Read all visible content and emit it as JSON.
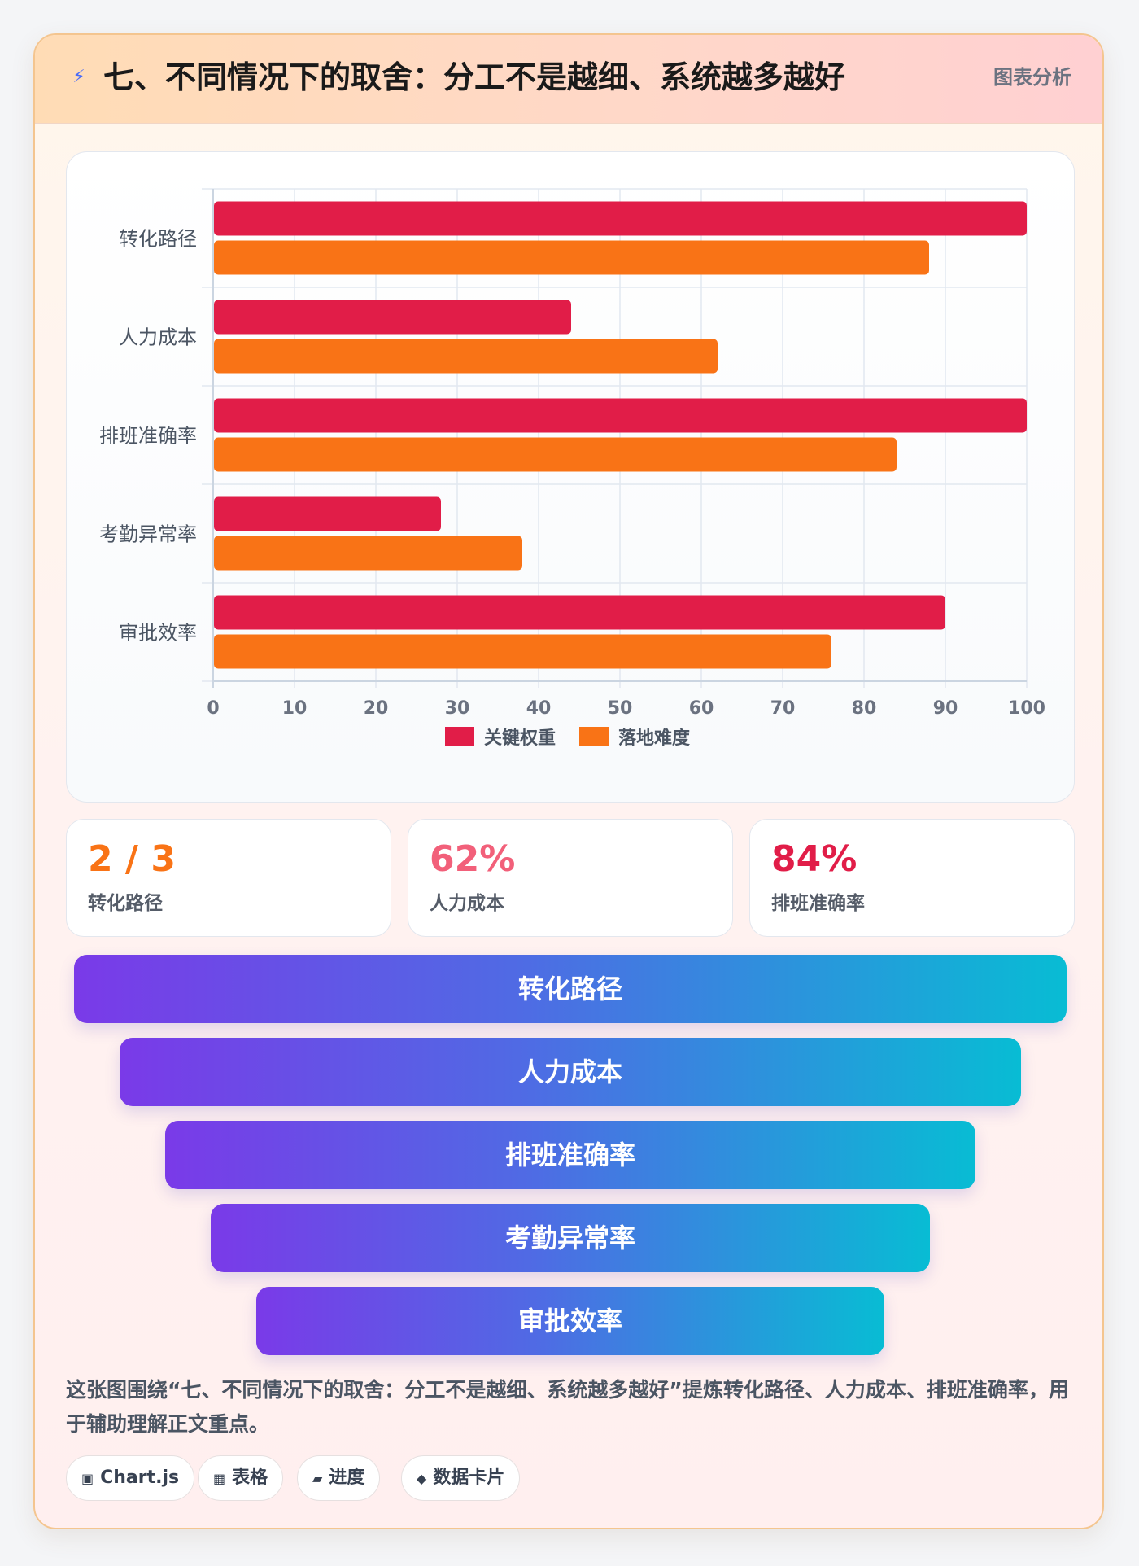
{
  "header": {
    "icon": "lightning-icon",
    "title": "七、不同情况下的取舍：分工不是越细、系统越多越好",
    "tag": "图表分析"
  },
  "chart_data": {
    "type": "bar",
    "orientation": "horizontal",
    "categories": [
      "转化路径",
      "人力成本",
      "排班准确率",
      "考勤异常率",
      "审批效率"
    ],
    "series": [
      {
        "name": "关键权重",
        "color": "#e11d48",
        "values": [
          100,
          44,
          100,
          28,
          90
        ]
      },
      {
        "name": "落地难度",
        "color": "#f97316",
        "values": [
          88,
          62,
          84,
          38,
          76
        ]
      }
    ],
    "xlim": [
      0,
      100
    ],
    "xticks": [
      0,
      10,
      20,
      30,
      40,
      50,
      60,
      70,
      80,
      90,
      100
    ],
    "grid": true,
    "legend": "bottom"
  },
  "stats": [
    {
      "value": "2 / 3",
      "label": "转化路径",
      "color": "#f97316"
    },
    {
      "value": "62%",
      "label": "人力成本",
      "color": "#f2607a"
    },
    {
      "value": "84%",
      "label": "排班准确率",
      "color": "#e11d48"
    }
  ],
  "funnel": [
    "转化路径",
    "人力成本",
    "排班准确率",
    "考勤异常率",
    "审批效率"
  ],
  "description": "这张图围绕“七、不同情况下的取舍：分工不是越细、系统越多越好”提炼转化路径、人力成本、排班准确率，用于辅助理解正文重点。",
  "chips": [
    {
      "icon": "▣",
      "label": "Chart.js"
    },
    {
      "icon": "▦",
      "label": "表格"
    },
    {
      "icon": "▰",
      "label": "进度"
    },
    {
      "icon": "◆",
      "label": "数据卡片"
    }
  ]
}
